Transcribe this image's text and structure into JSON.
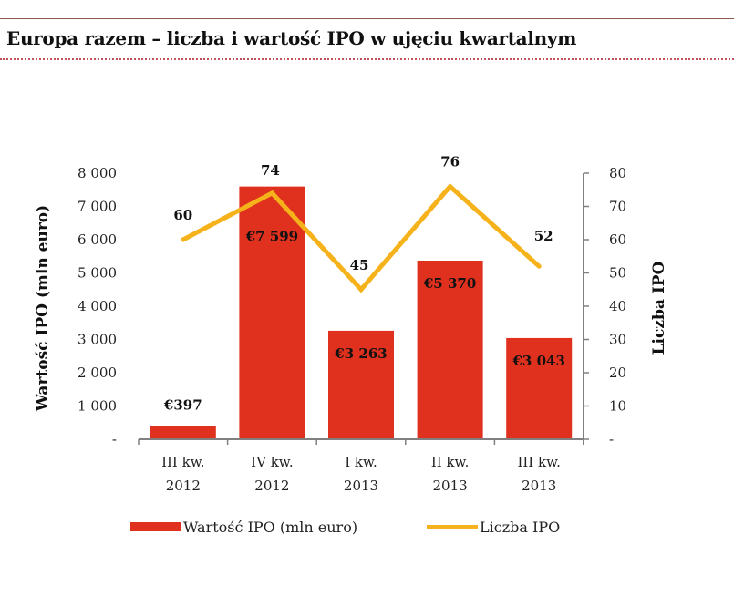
{
  "header": {
    "title": "Europa razem – liczba i wartość IPO w ujęciu kwartalnym"
  },
  "colors": {
    "bar": "#e0301e",
    "line": "#f5b21a",
    "axis": "#808080",
    "title_rule": "#c0505a"
  },
  "chart_data": {
    "type": "bar+line",
    "title": "Europa razem – liczba i wartość IPO w ujęciu kwartalnym",
    "categories": [
      [
        "III kw.",
        "2012"
      ],
      [
        "IV kw.",
        "2012"
      ],
      [
        "I kw.",
        "2013"
      ],
      [
        "II kw.",
        "2013"
      ],
      [
        "III kw.",
        "2013"
      ]
    ],
    "series": [
      {
        "name": "Wartość IPO (mln euro)",
        "type": "bar",
        "axis": "left",
        "values": [
          397,
          7599,
          3263,
          5370,
          3043
        ],
        "labels": [
          "€397",
          "€7 599",
          "€3 263",
          "€5 370",
          "€3 043"
        ]
      },
      {
        "name": "Liczba IPO",
        "type": "line",
        "axis": "right",
        "values": [
          60,
          74,
          45,
          76,
          52
        ],
        "labels": [
          "60",
          "74",
          "45",
          "76",
          "52"
        ]
      }
    ],
    "y_left": {
      "label": "Wartość IPO (mln euro)",
      "range": [
        0,
        8000
      ],
      "ticks": [
        "-",
        "1 000",
        "2 000",
        "3 000",
        "4 000",
        "5 000",
        "6 000",
        "7 000",
        "8 000"
      ]
    },
    "y_right": {
      "label": "Liczba IPO",
      "range": [
        0,
        80
      ],
      "ticks": [
        "-",
        "10",
        "20",
        "30",
        "40",
        "50",
        "60",
        "70",
        "80"
      ]
    },
    "grid": false,
    "legend": {
      "position": "bottom",
      "items": [
        "Wartość IPO (mln euro)",
        "Liczba IPO"
      ]
    }
  }
}
